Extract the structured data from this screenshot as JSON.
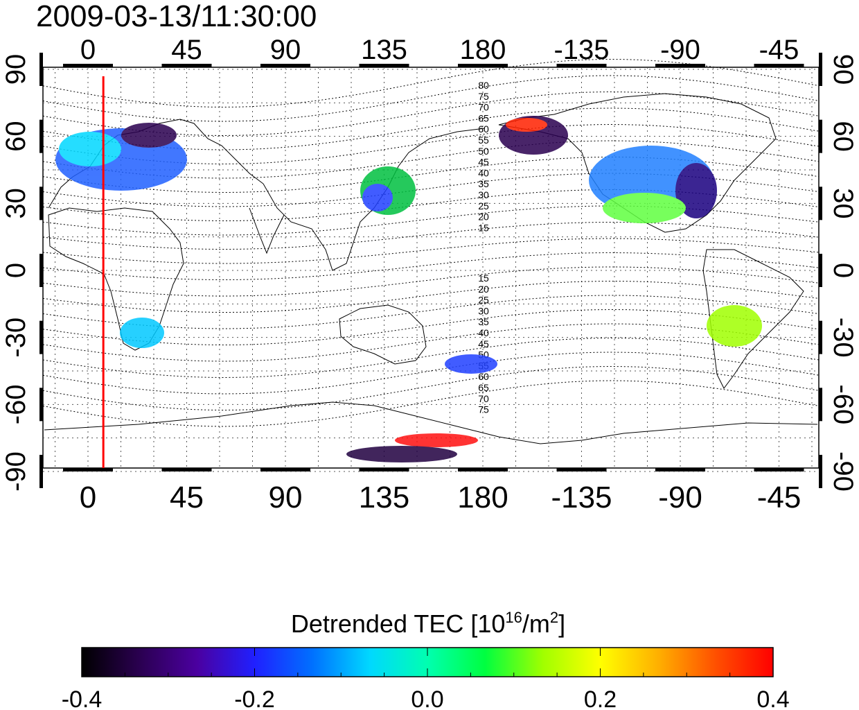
{
  "title": "2009-03-13/11:30:00",
  "map": {
    "projection": "equirectangular",
    "central_longitude": 150,
    "lon_tick_labels": [
      "0",
      "45",
      "90",
      "135",
      "180",
      "-135",
      "-90",
      "-45"
    ],
    "lon_tick_values": [
      0,
      45,
      90,
      135,
      180,
      225,
      270,
      315
    ],
    "lat_tick_labels": [
      "90",
      "60",
      "30",
      "0",
      "-30",
      "-60",
      "-90"
    ],
    "lat_tick_values": [
      90,
      60,
      30,
      0,
      -30,
      -60,
      -90
    ],
    "grid": "dotted",
    "marker_longitude": 7,
    "marker_color": "#ff0000",
    "contour_labels_north": [
      "80",
      "75",
      "70",
      "65",
      "60",
      "55",
      "50",
      "45",
      "40",
      "35",
      "30",
      "25",
      "20",
      "15"
    ],
    "contour_labels_south": [
      "15",
      "20",
      "25",
      "30",
      "35",
      "40",
      "45",
      "50",
      "55",
      "60",
      "65",
      "70",
      "75"
    ]
  },
  "colorbar": {
    "label_main": "Detrended TEC  [10",
    "label_exp": "16",
    "label_mid": "/m",
    "label_exp2": "2",
    "label_end": "]",
    "ticks": [
      "-0.4",
      "-0.2",
      "0.0",
      "0.2",
      "0.4"
    ],
    "min": -0.4,
    "max": 0.4,
    "colors": [
      "#000000",
      "#2a0050",
      "#4b00a0",
      "#2020ff",
      "#0070ff",
      "#00d8ff",
      "#00ffb0",
      "#00ff40",
      "#a0ff00",
      "#ffff00",
      "#ffb000",
      "#ff5000",
      "#ff0000"
    ]
  }
}
